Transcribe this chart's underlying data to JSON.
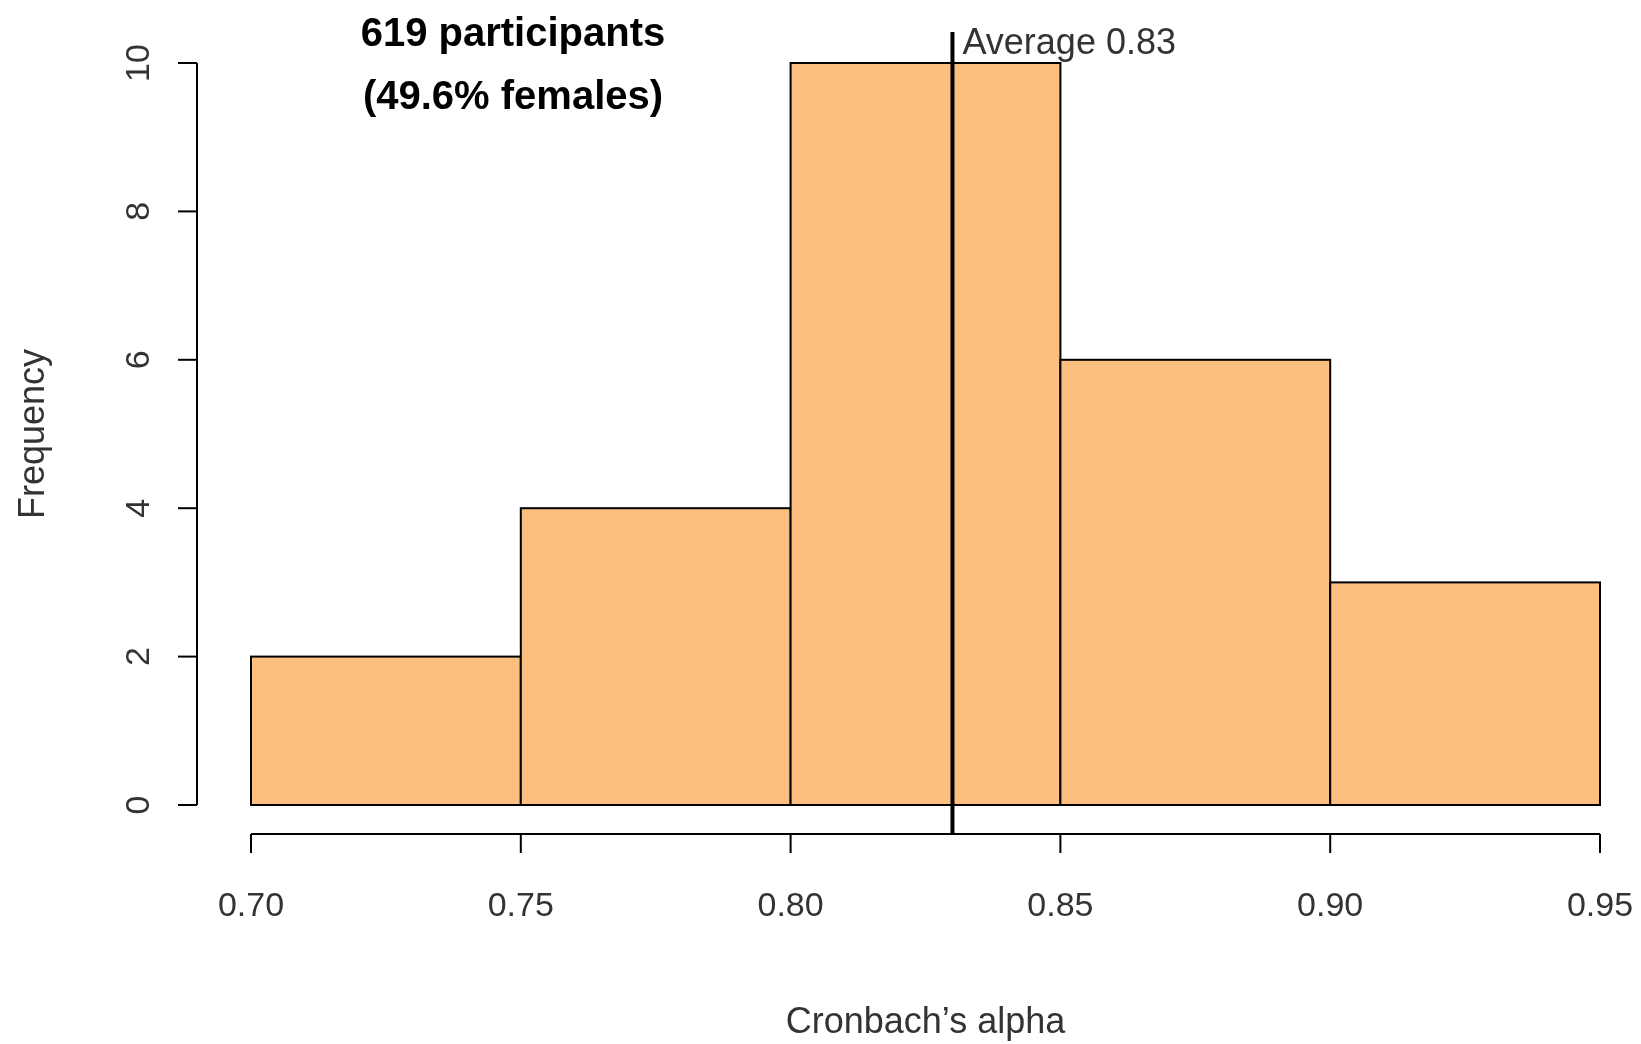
{
  "chart_data": {
    "type": "histogram",
    "xlabel": "Cronbach’s alpha",
    "ylabel": "Frequency",
    "bins": [
      0.7,
      0.75,
      0.8,
      0.85,
      0.9,
      0.95
    ],
    "values": [
      2,
      4,
      10,
      6,
      3
    ],
    "color": "#fdbf7f",
    "xlim": [
      0.7,
      0.95
    ],
    "xticks": [
      {
        "value": 0.7,
        "label": "0.70"
      },
      {
        "value": 0.75,
        "label": "0.75"
      },
      {
        "value": 0.8,
        "label": "0.80"
      },
      {
        "value": 0.85,
        "label": "0.85"
      },
      {
        "value": 0.9,
        "label": "0.90"
      },
      {
        "value": 0.95,
        "label": "0.95"
      }
    ],
    "ylim": [
      0,
      10
    ],
    "yticks": [
      0,
      2,
      4,
      6,
      8,
      10
    ],
    "ref_lines": [
      {
        "axis": "x",
        "value": 0.83,
        "label": "Average 0.83",
        "color": "#000000"
      }
    ],
    "annotations": [
      "619 participants",
      "(49.6% females)"
    ]
  }
}
